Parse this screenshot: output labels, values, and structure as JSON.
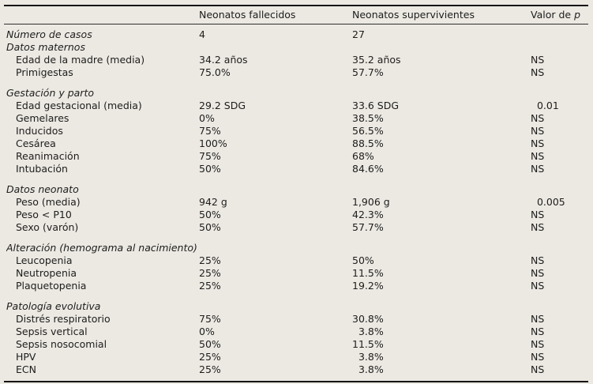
{
  "table": {
    "header": {
      "label_col": "",
      "fallecidos": "Neonatos fallecidos",
      "supervivientes": "Neonatos supervivientes",
      "p_prefix": "Valor de ",
      "p_symbol": "p"
    },
    "rows": [
      {
        "type": "data",
        "italic": true,
        "indent": false,
        "gap": false,
        "label": "Número de casos",
        "fallecidos": "4",
        "supervivientes": "27",
        "p": ""
      },
      {
        "type": "section",
        "gap": false,
        "label": "Datos maternos"
      },
      {
        "type": "data",
        "italic": false,
        "indent": true,
        "gap": false,
        "label": "Edad de la madre (media)",
        "fallecidos": "34.2 años",
        "supervivientes": "35.2 años",
        "p": "NS"
      },
      {
        "type": "data",
        "italic": false,
        "indent": true,
        "gap": false,
        "label": "Primigestas",
        "fallecidos": "75.0%",
        "supervivientes": "57.7%",
        "p": "NS"
      },
      {
        "type": "section",
        "gap": true,
        "label": "Gestación y parto"
      },
      {
        "type": "data",
        "italic": false,
        "indent": true,
        "gap": false,
        "label": "Edad gestacional (media)",
        "fallecidos": "29.2 SDG",
        "supervivientes": "33.6 SDG",
        "p": "  0.01"
      },
      {
        "type": "data",
        "italic": false,
        "indent": true,
        "gap": false,
        "label": "Gemelares",
        "fallecidos": "0%",
        "supervivientes": "38.5%",
        "p": "NS"
      },
      {
        "type": "data",
        "italic": false,
        "indent": true,
        "gap": false,
        "label": "Inducidos",
        "fallecidos": "75%",
        "supervivientes": "56.5%",
        "p": "NS"
      },
      {
        "type": "data",
        "italic": false,
        "indent": true,
        "gap": false,
        "label": "Cesárea",
        "fallecidos": "100%",
        "supervivientes": "88.5%",
        "p": "NS"
      },
      {
        "type": "data",
        "italic": false,
        "indent": true,
        "gap": false,
        "label": "Reanimación",
        "fallecidos": "75%",
        "supervivientes": "68%",
        "p": "NS"
      },
      {
        "type": "data",
        "italic": false,
        "indent": true,
        "gap": false,
        "label": "Intubación",
        "fallecidos": "50%",
        "supervivientes": "84.6%",
        "p": "NS"
      },
      {
        "type": "section",
        "gap": true,
        "label": "Datos neonato"
      },
      {
        "type": "data",
        "italic": false,
        "indent": true,
        "gap": false,
        "label": "Peso (media)",
        "fallecidos": "942 g",
        "supervivientes": "1,906 g",
        "p": "  0.005"
      },
      {
        "type": "data",
        "italic": false,
        "indent": true,
        "gap": false,
        "label": "Peso < P10",
        "fallecidos": "50%",
        "supervivientes": "42.3%",
        "p": "NS"
      },
      {
        "type": "data",
        "italic": false,
        "indent": true,
        "gap": false,
        "label": "Sexo (varón)",
        "fallecidos": "50%",
        "supervivientes": "57.7%",
        "p": "NS"
      },
      {
        "type": "section",
        "gap": true,
        "label": "Alteración (hemograma al nacimiento)"
      },
      {
        "type": "data",
        "italic": false,
        "indent": true,
        "gap": false,
        "label": "Leucopenia",
        "fallecidos": "25%",
        "supervivientes": "50%",
        "p": "NS"
      },
      {
        "type": "data",
        "italic": false,
        "indent": true,
        "gap": false,
        "label": "Neutropenia",
        "fallecidos": "25%",
        "supervivientes": "11.5%",
        "p": "NS"
      },
      {
        "type": "data",
        "italic": false,
        "indent": true,
        "gap": false,
        "label": "Plaquetopenia",
        "fallecidos": "25%",
        "supervivientes": "19.2%",
        "p": "NS"
      },
      {
        "type": "section",
        "gap": true,
        "label": "Patología evolutiva"
      },
      {
        "type": "data",
        "italic": false,
        "indent": true,
        "gap": false,
        "label": "Distrés respiratorio",
        "fallecidos": "75%",
        "supervivientes": "30.8%",
        "p": "NS"
      },
      {
        "type": "data",
        "italic": false,
        "indent": true,
        "gap": false,
        "label": "Sepsis vertical",
        "fallecidos": "0%",
        "supervivientes": "  3.8%",
        "p": "NS"
      },
      {
        "type": "data",
        "italic": false,
        "indent": true,
        "gap": false,
        "label": "Sepsis nosocomial",
        "fallecidos": "50%",
        "supervivientes": "11.5%",
        "p": "NS"
      },
      {
        "type": "data",
        "italic": false,
        "indent": true,
        "gap": false,
        "label": "HPV",
        "fallecidos": "25%",
        "supervivientes": "  3.8%",
        "p": "NS"
      },
      {
        "type": "data",
        "italic": false,
        "indent": true,
        "gap": false,
        "label": "ECN",
        "fallecidos": "25%",
        "supervivientes": "  3.8%",
        "p": "NS"
      }
    ]
  }
}
